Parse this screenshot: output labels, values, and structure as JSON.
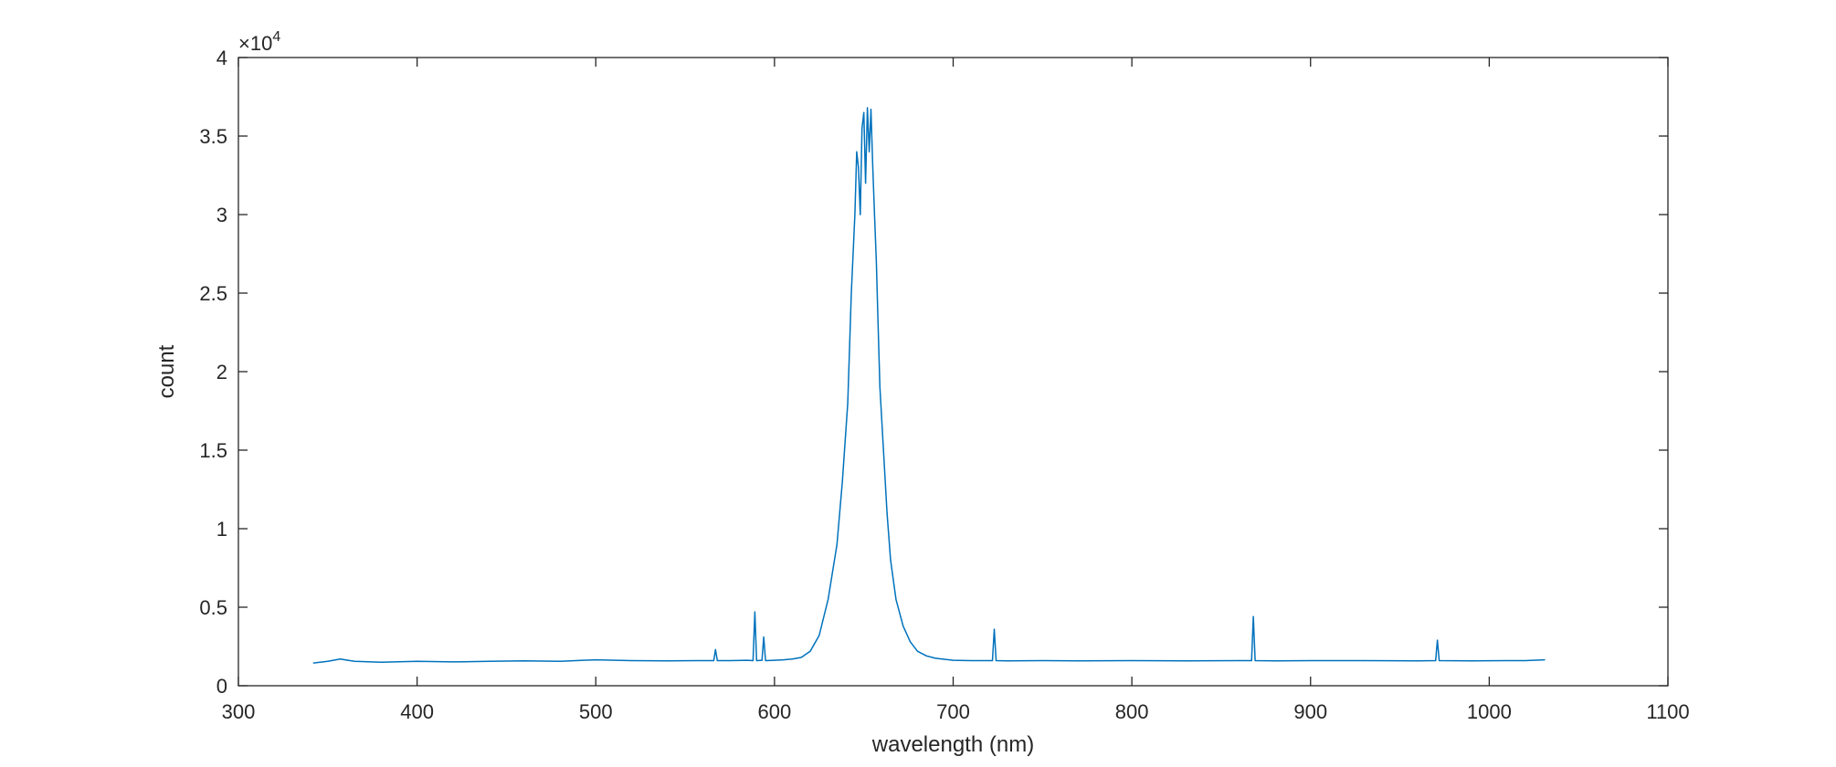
{
  "chart_data": {
    "type": "line",
    "title": "",
    "xlabel": "wavelength (nm)",
    "ylabel": "count",
    "xlim": [
      300,
      1100
    ],
    "ylim": [
      0,
      40000
    ],
    "x_ticks": [
      300,
      400,
      500,
      600,
      700,
      800,
      900,
      1000,
      1100
    ],
    "x_tick_labels": [
      "300",
      "400",
      "500",
      "600",
      "700",
      "800",
      "900",
      "1000",
      "1100"
    ],
    "y_ticks": [
      0,
      5000,
      10000,
      15000,
      20000,
      25000,
      30000,
      35000,
      40000
    ],
    "y_tick_labels": [
      "0",
      "0.5",
      "1",
      "1.5",
      "2",
      "2.5",
      "3",
      "3.5",
      "4"
    ],
    "y_exponent_base": "×10",
    "y_exponent": "4",
    "grid": false,
    "line_color": "#0072BD",
    "series": [
      {
        "x": [
          342,
          350,
          357,
          365,
          380,
          400,
          420,
          440,
          460,
          480,
          500,
          520,
          540,
          560,
          566,
          567,
          568,
          575,
          585,
          588,
          589,
          590,
          593,
          594,
          595,
          600,
          605,
          610,
          615,
          620,
          625,
          630,
          635,
          638,
          641,
          643,
          645,
          646,
          647,
          648,
          649,
          650,
          651,
          652,
          653,
          654,
          655,
          656,
          657,
          658,
          659,
          661,
          663,
          665,
          668,
          672,
          676,
          680,
          685,
          690,
          700,
          710,
          720,
          722,
          723,
          724,
          730,
          750,
          770,
          800,
          830,
          860,
          867,
          868,
          869,
          880,
          900,
          930,
          960,
          970,
          971,
          972,
          990,
          1010,
          1020,
          1031
        ],
        "y": [
          1450,
          1550,
          1700,
          1550,
          1500,
          1550,
          1520,
          1550,
          1580,
          1560,
          1650,
          1600,
          1580,
          1600,
          1600,
          2300,
          1600,
          1600,
          1620,
          1600,
          4700,
          1600,
          1620,
          3100,
          1600,
          1620,
          1650,
          1700,
          1800,
          2200,
          3200,
          5500,
          9000,
          13000,
          18000,
          25000,
          30000,
          34000,
          33000,
          30000,
          35500,
          36500,
          32000,
          36800,
          34000,
          36700,
          33000,
          30000,
          27000,
          23000,
          19000,
          15000,
          11000,
          8000,
          5500,
          3800,
          2800,
          2200,
          1900,
          1750,
          1620,
          1600,
          1600,
          1600,
          3600,
          1600,
          1580,
          1600,
          1580,
          1600,
          1580,
          1600,
          1600,
          4400,
          1600,
          1580,
          1600,
          1600,
          1580,
          1600,
          2900,
          1600,
          1580,
          1600,
          1600,
          1650
        ]
      }
    ]
  }
}
